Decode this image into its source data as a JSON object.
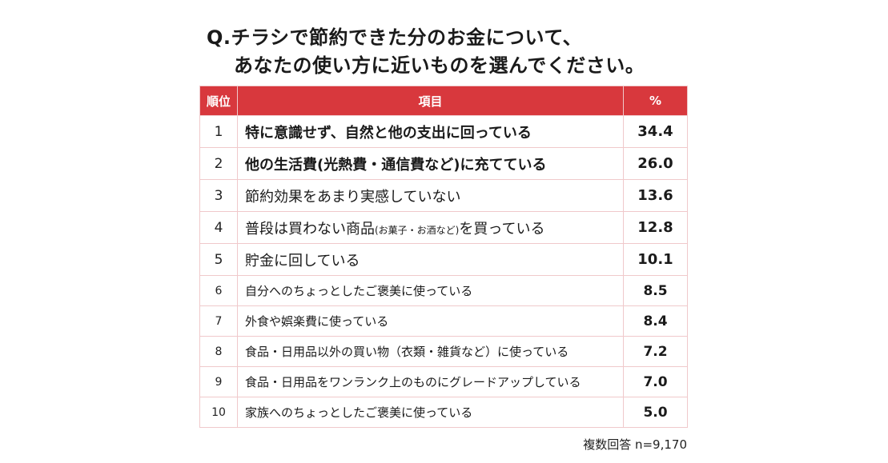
{
  "question": {
    "line1": "Q.チラシで節約できた分のお金について、",
    "line2": "あなたの使い方に近いものを選んでください。"
  },
  "table": {
    "headers": {
      "rank": "順位",
      "item": "項目",
      "percent": "%"
    },
    "rows": [
      {
        "rank": "1",
        "item": "特に意識せず、自然と他の支出に回っている",
        "percent": "34.4"
      },
      {
        "rank": "2",
        "item": "他の生活費(光熱費・通信費など)に充てている",
        "percent": "26.0"
      },
      {
        "rank": "3",
        "item": "節約効果をあまり実感していない",
        "percent": "13.6"
      },
      {
        "rank": "4",
        "item_main": "普段は買わない商品",
        "item_sub": "(お菓子・お酒など)",
        "item_tail": "を買っている",
        "percent": "12.8"
      },
      {
        "rank": "5",
        "item": "貯金に回している",
        "percent": "10.1"
      },
      {
        "rank": "6",
        "item": "自分へのちょっとしたご褒美に使っている",
        "percent": "8.5"
      },
      {
        "rank": "7",
        "item": "外食や娯楽費に使っている",
        "percent": "8.4"
      },
      {
        "rank": "8",
        "item": "食品・日用品以外の買い物（衣類・雑貨など）に使っている",
        "percent": "7.2"
      },
      {
        "rank": "9",
        "item": "食品・日用品をワンランク上のものにグレードアップしている",
        "percent": "7.0"
      },
      {
        "rank": "10",
        "item": "家族へのちょっとしたご褒美に使っている",
        "percent": "5.0"
      }
    ]
  },
  "footnote": "複数回答 n=9,170",
  "colors": {
    "header_bg": "#d8383d",
    "header_text": "#ffffff",
    "border": "#f0c9cb"
  }
}
